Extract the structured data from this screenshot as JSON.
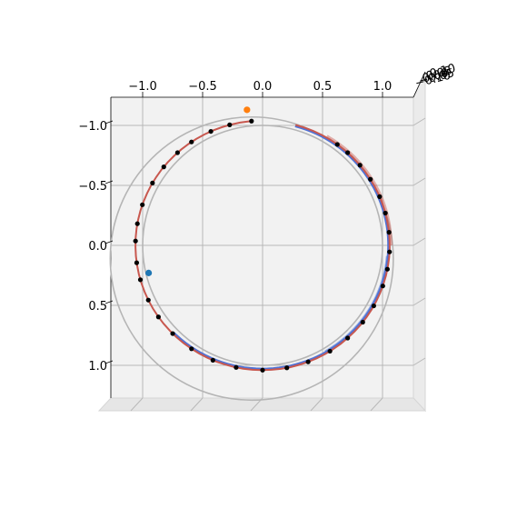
{
  "chart_data": {
    "type": "scatter",
    "title": "",
    "xlabel": "",
    "ylabel": "",
    "zlabel": "",
    "xlim": [
      -1.27,
      1.27
    ],
    "ylim": [
      -1.27,
      1.27
    ],
    "y_axis_inverted": true,
    "grid": true,
    "x_ticks": [
      "−1.0",
      "−0.5",
      "0.0",
      "0.5",
      "1.0"
    ],
    "y_ticks": [
      "−1.0",
      "−0.5",
      "0.0",
      "0.5",
      "1.0"
    ],
    "z_ticks": [
      "−0.10",
      "−0.05",
      "0.00",
      "0.05",
      "0.10"
    ],
    "colors": {
      "pane": "#f2f2f2",
      "grid": "#b8b8b8",
      "reference_circle": "#b5b5b5",
      "path_red": "#c8584f",
      "path_blue": "#4f72d6",
      "points": "#000000",
      "start_marker": "#ff7f0e",
      "end_marker": "#1f77b4"
    },
    "reference_circles": [
      {
        "cx": 0.0,
        "cy": 0.0,
        "r": 1.0
      },
      {
        "cx": -0.09,
        "cy": 0.11,
        "r": 1.18
      }
    ],
    "trajectory": {
      "arc_start_deg": 96,
      "arc_end_deg": 435,
      "red_segments": [
        [
          96,
          353
        ],
        [
          57,
          75
        ]
      ],
      "blue_segments": [
        [
          352,
          425
        ],
        [
          406,
          414
        ]
      ],
      "black_points_deg": [
        95,
        105,
        114,
        124,
        132,
        141,
        150,
        161,
        170,
        178,
        188,
        196,
        206,
        215,
        225,
        236,
        247,
        258,
        270,
        281,
        291,
        302,
        312,
        322,
        331,
        341,
        349,
        357,
        366,
        375,
        383,
        392,
        400,
        408,
        414
      ]
    },
    "start_point": {
      "x": -0.13,
      "y": -1.13
    },
    "end_point": {
      "x": -0.95,
      "y": 0.23
    }
  }
}
